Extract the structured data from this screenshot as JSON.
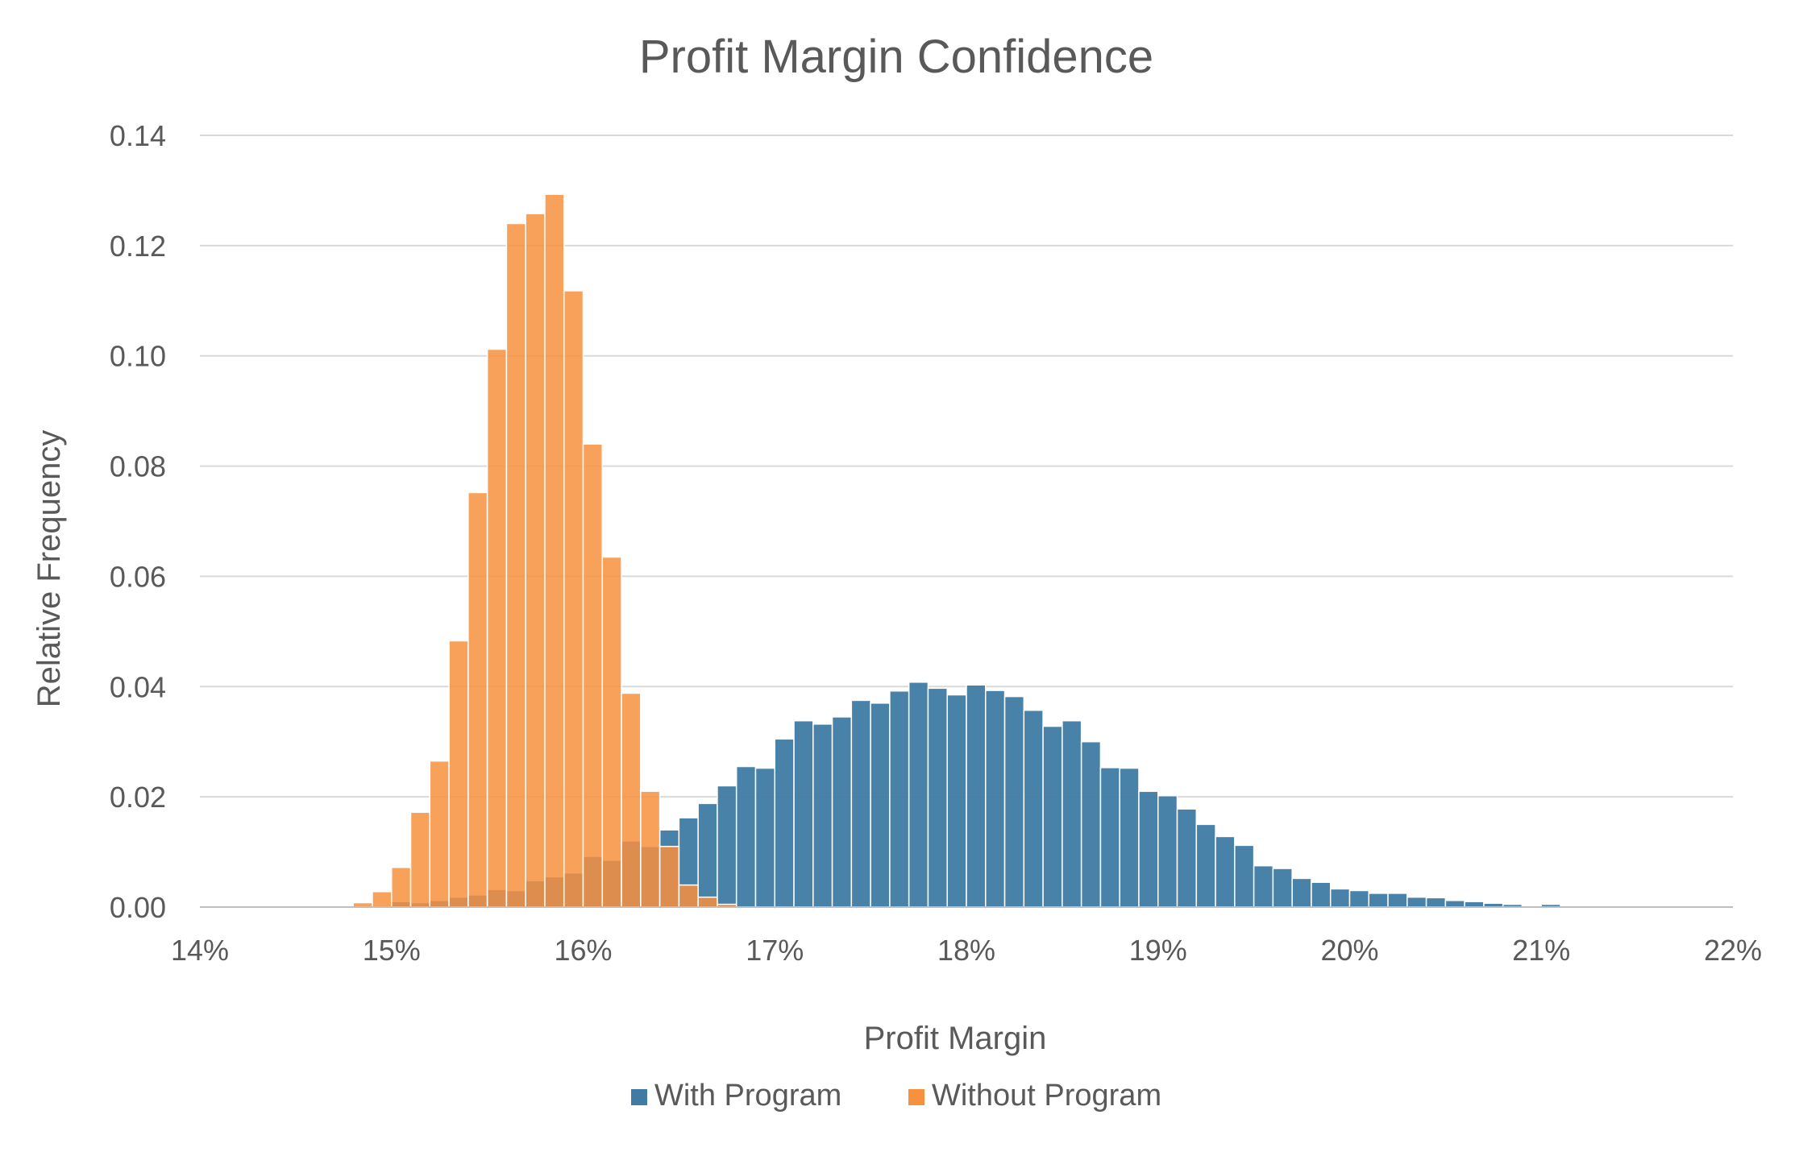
{
  "chart_data": {
    "type": "bar",
    "title": "Profit Margin Confidence",
    "xlabel": "Profit Margin",
    "ylabel": "Relative Frequency",
    "xlim": [
      0.14,
      0.22
    ],
    "ylim": [
      0,
      0.14
    ],
    "x_ticks": [
      {
        "value": 0.14,
        "label": "14%"
      },
      {
        "value": 0.15,
        "label": "15%"
      },
      {
        "value": 0.16,
        "label": "16%"
      },
      {
        "value": 0.17,
        "label": "17%"
      },
      {
        "value": 0.18,
        "label": "18%"
      },
      {
        "value": 0.19,
        "label": "19%"
      },
      {
        "value": 0.2,
        "label": "20%"
      },
      {
        "value": 0.21,
        "label": "21%"
      },
      {
        "value": 0.22,
        "label": "22%"
      }
    ],
    "y_ticks": [
      {
        "value": 0.0,
        "label": "0.00"
      },
      {
        "value": 0.02,
        "label": "0.02"
      },
      {
        "value": 0.04,
        "label": "0.04"
      },
      {
        "value": 0.06,
        "label": "0.06"
      },
      {
        "value": 0.08,
        "label": "0.08"
      },
      {
        "value": 0.1,
        "label": "0.10"
      },
      {
        "value": 0.12,
        "label": "0.12"
      },
      {
        "value": 0.14,
        "label": "0.14"
      }
    ],
    "grid": true,
    "legend_position": "bottom-center",
    "bin_width": 0.001,
    "series": [
      {
        "name": "With Program",
        "color": "#3f7ba3",
        "bin_start": [
          0.149,
          0.15,
          0.151,
          0.152,
          0.153,
          0.154,
          0.155,
          0.156,
          0.157,
          0.158,
          0.159,
          0.16,
          0.161,
          0.162,
          0.163,
          0.164,
          0.165,
          0.166,
          0.167,
          0.168,
          0.169,
          0.17,
          0.171,
          0.172,
          0.173,
          0.174,
          0.175,
          0.176,
          0.177,
          0.178,
          0.179,
          0.18,
          0.181,
          0.182,
          0.183,
          0.184,
          0.185,
          0.186,
          0.187,
          0.188,
          0.189,
          0.19,
          0.191,
          0.192,
          0.193,
          0.194,
          0.195,
          0.196,
          0.197,
          0.198,
          0.199,
          0.2,
          0.201,
          0.202,
          0.203,
          0.204,
          0.205,
          0.206,
          0.207,
          0.208,
          0.209,
          0.21
        ],
        "values": [
          0.0002,
          0.001,
          0.0008,
          0.0012,
          0.0018,
          0.0022,
          0.0032,
          0.003,
          0.0048,
          0.0055,
          0.0062,
          0.0092,
          0.0085,
          0.012,
          0.011,
          0.014,
          0.0162,
          0.0188,
          0.022,
          0.0255,
          0.0252,
          0.0305,
          0.0338,
          0.0332,
          0.0345,
          0.0375,
          0.037,
          0.0392,
          0.0408,
          0.0397,
          0.0385,
          0.0403,
          0.0393,
          0.0382,
          0.0357,
          0.0328,
          0.0338,
          0.03,
          0.0253,
          0.0252,
          0.021,
          0.0202,
          0.0178,
          0.015,
          0.0128,
          0.0112,
          0.0075,
          0.007,
          0.0052,
          0.0045,
          0.0033,
          0.003,
          0.0025,
          0.0025,
          0.0018,
          0.0017,
          0.0012,
          0.001,
          0.0007,
          0.0005,
          0.0002,
          0.0005
        ]
      },
      {
        "name": "Without Program",
        "color": "#f7913e",
        "bin_start": [
          0.148,
          0.149,
          0.15,
          0.151,
          0.152,
          0.153,
          0.154,
          0.155,
          0.156,
          0.157,
          0.158,
          0.159,
          0.16,
          0.161,
          0.162,
          0.163,
          0.164,
          0.165,
          0.166,
          0.167
        ],
        "values": [
          0.0008,
          0.0028,
          0.0072,
          0.0172,
          0.0265,
          0.0483,
          0.0752,
          0.1012,
          0.124,
          0.1258,
          0.1293,
          0.1118,
          0.084,
          0.0635,
          0.0388,
          0.021,
          0.011,
          0.004,
          0.0018,
          0.0005
        ]
      }
    ]
  }
}
